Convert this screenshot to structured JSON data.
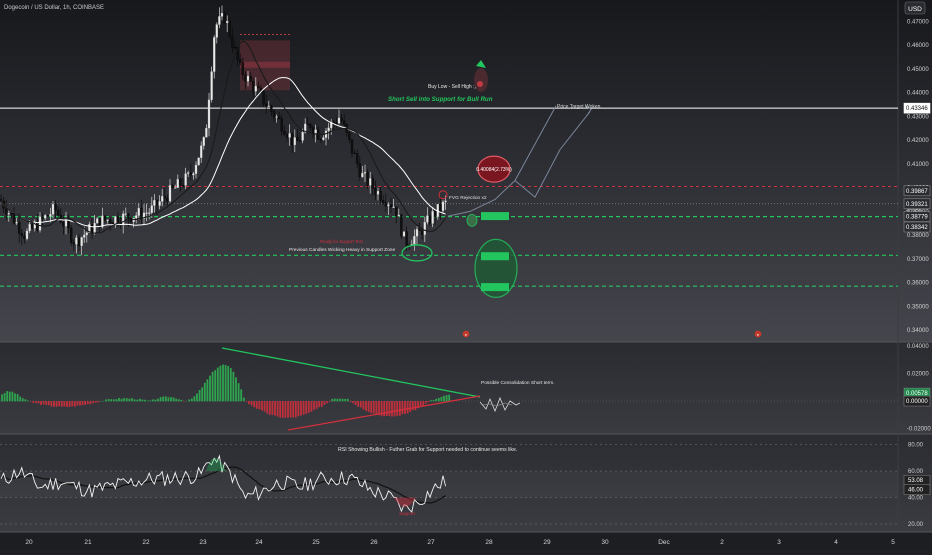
{
  "header": {
    "symbol_title": "Dogecoin / US Dollar, 1h, COINBASE",
    "currency": "USD"
  },
  "colors": {
    "bg_top": "#18191d",
    "bg_bottom": "#4a4b52",
    "up": "#e9e9e9",
    "down": "#101010",
    "green": "#22c55e",
    "red": "#d32f3c",
    "white_line": "#ffffff",
    "gray_path": "#7a8699"
  },
  "price_pane": {
    "y_range": [
      0.335,
      0.479
    ],
    "y_ticks": [
      "0.47000",
      "0.46000",
      "0.45000",
      "0.44000",
      "0.43000",
      "0.42000",
      "0.41000",
      "0.40000",
      "0.39000",
      "0.38000",
      "0.37000",
      "0.36000",
      "0.35000",
      "0.34000"
    ],
    "y_tick_values": [
      0.47,
      0.46,
      0.45,
      0.44,
      0.43,
      0.42,
      0.41,
      0.4,
      0.39,
      0.38,
      0.37,
      0.36,
      0.35,
      0.34
    ],
    "price_badges": [
      {
        "text": "0.43346",
        "value": 0.43346,
        "style": "white"
      },
      {
        "text": "0.39867",
        "value": 0.39867,
        "style": "dark"
      },
      {
        "text": "0.39321",
        "value": 0.39321,
        "style": "dark"
      },
      {
        "text": "37:59",
        "value": 0.3898,
        "style": "plain"
      },
      {
        "text": "0.38779",
        "value": 0.38779,
        "style": "dark"
      },
      {
        "text": "0.38342",
        "value": 0.38342,
        "style": "dark"
      }
    ],
    "levels": [
      {
        "value": 0.43346,
        "style": "white-solid"
      },
      {
        "value": 0.4005,
        "style": "red-dashed"
      },
      {
        "value": 0.38779,
        "style": "green-dashed"
      },
      {
        "value": 0.3715,
        "style": "green-dashed"
      },
      {
        "value": 0.3585,
        "style": "green-dashed"
      },
      {
        "value": 0.39321,
        "style": "gray-dotted"
      }
    ],
    "annotations": {
      "buy_low": "Buy Low - Sell High :)",
      "short_sell": "Short Sell into Support for Bull Run",
      "price_target": "Price Target Woken",
      "red_bubble": "0.40084(2.73%)",
      "fvg": "FVG Rejection x2",
      "prev_candles": "Previous Candles Wicking Heavy in Support Zone",
      "red_small": "Ready for Support Test"
    }
  },
  "macd_pane": {
    "y_ticks": [
      "0.04000",
      "0.02000",
      "0.00000",
      "-0.02000"
    ],
    "y_tick_values": [
      0.04,
      0.02,
      0.0,
      -0.02
    ],
    "y_range": [
      -0.024,
      0.043
    ],
    "badges": [
      {
        "text": "0.00578",
        "style": "green"
      },
      {
        "text": "0.00000",
        "style": "dark"
      }
    ],
    "annotation": "Possible Consolidation Short term."
  },
  "rsi_pane": {
    "y_ticks": [
      "80.00",
      "60.00",
      "40.00",
      "20.00"
    ],
    "y_tick_values": [
      80,
      60,
      40,
      20
    ],
    "y_range": [
      14,
      88
    ],
    "badges": [
      {
        "text": "53.08",
        "style": "dark"
      },
      {
        "text": "46.00",
        "style": "dark"
      }
    ],
    "annotation": "RSI Showing Bullish - Futher Grab for Support needed to continue seems like."
  },
  "time_axis": {
    "labels": [
      "20",
      "21",
      "22",
      "23",
      "24",
      "25",
      "26",
      "27",
      "28",
      "29",
      "30",
      "Dec",
      "2",
      "3",
      "4",
      "5"
    ]
  },
  "chart_data": {
    "type": "candlestick",
    "title": "Dogecoin / US Dollar, 1h, COINBASE",
    "price_axis_range": [
      0.335,
      0.479
    ],
    "approx_close_path": [
      [
        0,
        0.395
      ],
      [
        25,
        0.38
      ],
      [
        55,
        0.391
      ],
      [
        75,
        0.377
      ],
      [
        100,
        0.386
      ],
      [
        130,
        0.388
      ],
      [
        150,
        0.39
      ],
      [
        170,
        0.398
      ],
      [
        190,
        0.405
      ],
      [
        205,
        0.42
      ],
      [
        215,
        0.468
      ],
      [
        225,
        0.472
      ],
      [
        240,
        0.45
      ],
      [
        258,
        0.44
      ],
      [
        270,
        0.433
      ],
      [
        285,
        0.425
      ],
      [
        295,
        0.418
      ],
      [
        310,
        0.427
      ],
      [
        320,
        0.422
      ],
      [
        340,
        0.43
      ],
      [
        350,
        0.418
      ],
      [
        362,
        0.405
      ],
      [
        378,
        0.398
      ],
      [
        395,
        0.392
      ],
      [
        405,
        0.377
      ],
      [
        418,
        0.38
      ],
      [
        432,
        0.388
      ],
      [
        445,
        0.3932
      ]
    ],
    "current_price": 0.39321,
    "resistance": 0.4005,
    "supports": [
      0.38779,
      0.3715,
      0.3585
    ],
    "target_line": 0.43346,
    "projection_path": [
      [
        448,
        0.388
      ],
      [
        470,
        0.39
      ],
      [
        495,
        0.395
      ],
      [
        515,
        0.403
      ],
      [
        535,
        0.396
      ],
      [
        560,
        0.416
      ],
      [
        590,
        0.432
      ]
    ],
    "macd_histogram_note": "green above zero / red below zero",
    "rsi_levels": [
      80,
      60,
      40,
      20
    ],
    "rsi_current": 53.08
  }
}
